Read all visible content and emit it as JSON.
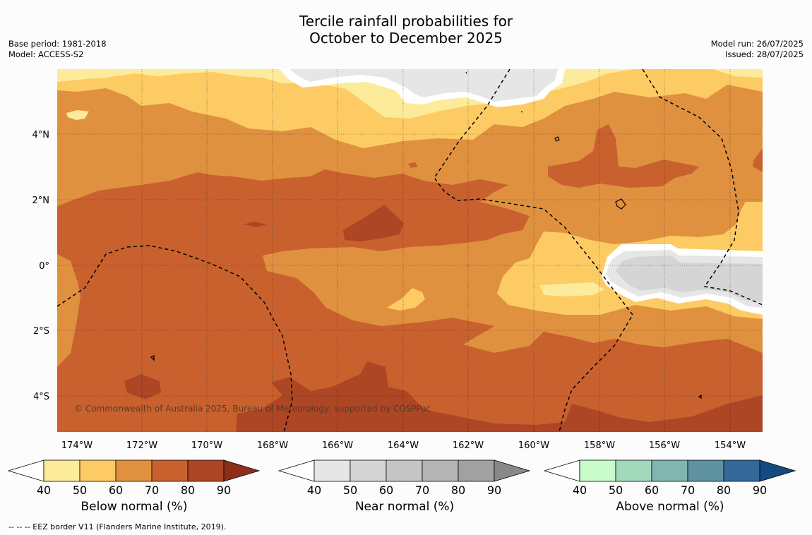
{
  "title": {
    "line1": "Tercile rainfall probabilities for",
    "line2": "October to December 2025"
  },
  "meta_left": {
    "base_period": "Base period: 1981-2018",
    "model": "Model: ACCESS-S2"
  },
  "meta_right": {
    "model_run": "Model run: 26/07/2025",
    "issued": "Issued: 28/07/2025"
  },
  "map": {
    "lon_ticks": [
      "174°W",
      "172°W",
      "170°W",
      "168°W",
      "166°W",
      "164°W",
      "162°W",
      "160°W",
      "158°W",
      "156°W",
      "154°W"
    ],
    "lat_ticks": [
      "4°N",
      "2°N",
      "0°",
      "2°S",
      "4°S"
    ],
    "copyright": "© Commonwealth of Australia 2025, Bureau of Meteorology, supported by COSPPac",
    "colors": {
      "below_40_50": "#fdeb9c",
      "below_50_60": "#fdcb63",
      "below_60_70": "#df9140",
      "below_70_80": "#c9612f",
      "below_80_90": "#ad4625",
      "near_40_50": "#e6e6e6",
      "near_50_60": "#d5d5d5",
      "border": "#000000"
    }
  },
  "colorbars": {
    "tick_labels": [
      "40",
      "50",
      "60",
      "70",
      "80",
      "90"
    ],
    "below": {
      "label": "Below normal (%)",
      "colors": [
        "#fdeb9c",
        "#fdcb63",
        "#df9140",
        "#c9612f",
        "#ad4625",
        "#8e2e1a"
      ]
    },
    "near": {
      "label": "Near normal (%)",
      "colors": [
        "#e6e6e6",
        "#d5d5d5",
        "#c6c6c6",
        "#b4b4b4",
        "#a1a1a1",
        "#888888"
      ]
    },
    "above": {
      "label": "Above normal (%)",
      "colors": [
        "#c9fbcb",
        "#a3d9bd",
        "#80b5b0",
        "#5e92a0",
        "#336899",
        "#134a80"
      ]
    }
  },
  "footer": "-- -- -- EEZ border V11 (Flanders Marine Institute, 2019)."
}
